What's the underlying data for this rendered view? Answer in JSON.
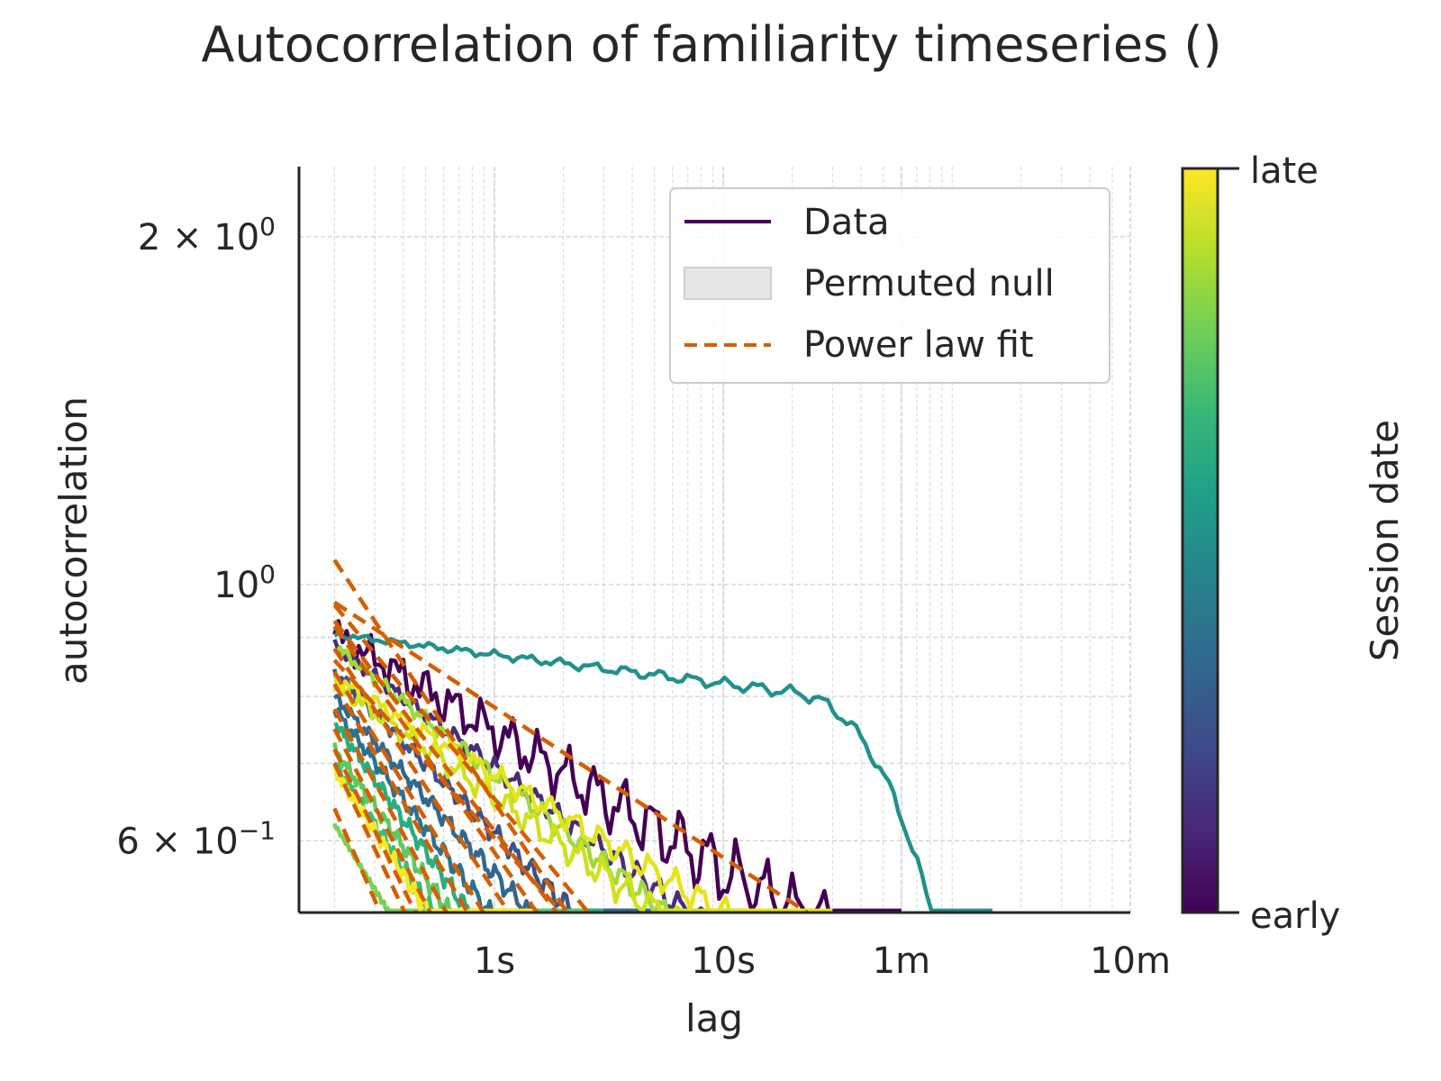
{
  "chart_data": {
    "type": "line",
    "title": "Autocorrelation of familiarity timeseries ()",
    "xlabel": "lag",
    "ylabel": "autocorrelation",
    "x_scale": "log",
    "y_scale": "log",
    "x_unit": "seconds",
    "xlim": [
      0.14,
      600
    ],
    "ylim": [
      0.52,
      2.3
    ],
    "x_ticks": [
      {
        "value": 1,
        "label": "1s"
      },
      {
        "value": 10,
        "label": "10s"
      },
      {
        "value": 60,
        "label": "1m"
      },
      {
        "value": 600,
        "label": "10m"
      }
    ],
    "y_ticks": [
      {
        "value": 2,
        "label": "2 × 10",
        "exp": "0"
      },
      {
        "value": 1,
        "label": "10",
        "exp": "0"
      },
      {
        "value": 0.6,
        "label": "6 × 10",
        "exp": "−1"
      }
    ],
    "grid": true,
    "legend": {
      "placement": "upper-right",
      "entries": [
        {
          "label": "Data",
          "kind": "line",
          "color": "#440154"
        },
        {
          "label": "Permuted null",
          "kind": "patch",
          "color": "#d9d9d9"
        },
        {
          "label": "Power law fit",
          "kind": "dashed",
          "color": "#d55e00"
        }
      ]
    },
    "colorbar": {
      "label": "Session date",
      "low_label": "early",
      "high_label": "late",
      "colormap": [
        "#440154",
        "#482878",
        "#3e4a89",
        "#31688e",
        "#26828e",
        "#1f9e89",
        "#35b779",
        "#6ece58",
        "#b5de2b",
        "#fde725"
      ]
    },
    "fit_color": "#d55e00",
    "series": [
      {
        "color": "#440154",
        "a": 0.905,
        "slope": -0.12,
        "xend": 60,
        "wiggle": 0.06,
        "fit": {
          "a": 0.96,
          "b": -0.24,
          "xend": 60
        }
      },
      {
        "color": "#472d7b",
        "a": 0.885,
        "slope": -0.15,
        "xend": 12,
        "wiggle": 0.02,
        "fit": {
          "a": 0.93,
          "b": -0.26,
          "xend": 14
        }
      },
      {
        "color": "#3b528b",
        "a": 0.84,
        "slope": -0.2,
        "xend": 6,
        "wiggle": 0.02,
        "fit": {
          "a": 0.88,
          "b": -0.3,
          "xend": 7
        }
      },
      {
        "color": "#2c728e",
        "a": 0.78,
        "slope": -0.26,
        "xend": 4,
        "wiggle": 0.02,
        "fit": {
          "a": 0.82,
          "b": -0.34,
          "xend": 4
        }
      },
      {
        "color": "#31688e",
        "a": 0.8,
        "slope": -0.22,
        "xend": 5,
        "wiggle": 0.02,
        "fit": {
          "a": 0.84,
          "b": -0.32,
          "xend": 5
        }
      },
      {
        "color": "#21918c",
        "a": 0.905,
        "slope": -0.025,
        "xend": 150,
        "wiggle": 0.01,
        "drop": true,
        "fit": {
          "a": 0.965,
          "b": -0.13,
          "xend": 300
        }
      },
      {
        "color": "#28ae80",
        "a": 0.76,
        "slope": -0.28,
        "xend": 3,
        "wiggle": 0.02,
        "fit": {
          "a": 0.78,
          "b": -0.36,
          "xend": 3
        }
      },
      {
        "color": "#3fbc73",
        "a": 0.7,
        "slope": -0.3,
        "xend": 2,
        "wiggle": 0.02,
        "fit": {
          "a": 0.72,
          "b": -0.4,
          "xend": 2.5
        }
      },
      {
        "color": "#5ec962",
        "a": 0.72,
        "slope": -0.28,
        "xend": 2.5,
        "wiggle": 0.02,
        "fit": {
          "a": 0.75,
          "b": -0.38,
          "xend": 2.8
        }
      },
      {
        "color": "#7ad151",
        "a": 0.62,
        "slope": -0.32,
        "xend": 0.5,
        "wiggle": 0.005,
        "fit": {
          "a": 0.64,
          "b": -0.45,
          "xend": 0.6
        }
      },
      {
        "color": "#a0da39",
        "a": 0.885,
        "slope": -0.16,
        "xend": 11,
        "wiggle": 0.02,
        "fit": {
          "a": 0.92,
          "b": -0.28,
          "xend": 12
        }
      },
      {
        "color": "#d0e11c",
        "a": 0.82,
        "slope": -0.14,
        "xend": 25,
        "wiggle": 0.03,
        "fit": {
          "a": 0.86,
          "b": -0.22,
          "xend": 20
        }
      },
      {
        "color": "#fde725",
        "a": 0.69,
        "slope": -0.3,
        "xend": 1.5,
        "wiggle": 0.02,
        "fit": {
          "a": 0.7,
          "b": -0.42,
          "xend": 1.5
        }
      },
      {
        "color": "#e5e419",
        "a": 0.83,
        "slope": -0.12,
        "xend": 30,
        "wiggle": 0.025,
        "fit": {
          "a": 1.05,
          "b": -0.3,
          "xend": 25
        }
      }
    ]
  }
}
